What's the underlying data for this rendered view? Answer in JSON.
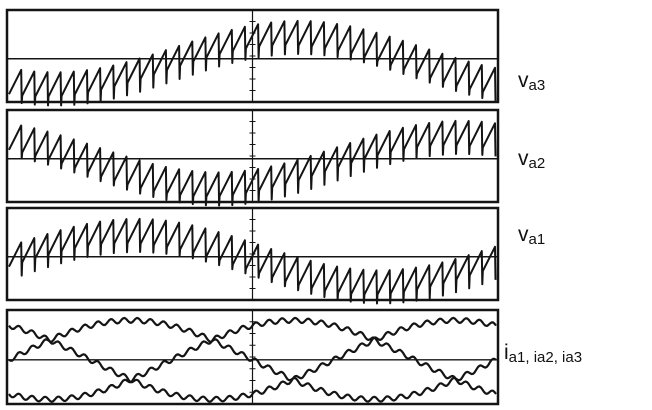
{
  "figure": {
    "panels": [
      {
        "label_main": "v",
        "label_sub": "a3"
      },
      {
        "label_main": "v",
        "label_sub": "a2"
      },
      {
        "label_main": "v",
        "label_sub": "a1"
      },
      {
        "label_main": "i",
        "label_sub": "a1, ia2, ia3"
      }
    ]
  },
  "chart_data": [
    {
      "type": "line",
      "title": "",
      "series": [
        {
          "name": "va3",
          "waveform": "sawtooth-ripple",
          "envelope_phase_deg": 240,
          "ripple_cycles": 37
        }
      ],
      "grid": true,
      "legend": "right"
    },
    {
      "type": "line",
      "title": "",
      "series": [
        {
          "name": "va2",
          "waveform": "sawtooth-ripple",
          "envelope_phase_deg": 120,
          "ripple_cycles": 37
        }
      ],
      "grid": true,
      "legend": "right"
    },
    {
      "type": "line",
      "title": "",
      "series": [
        {
          "name": "va1",
          "waveform": "sawtooth-ripple",
          "envelope_phase_deg": 0,
          "ripple_cycles": 37
        }
      ],
      "grid": true,
      "legend": "right"
    },
    {
      "type": "line",
      "title": "",
      "series": [
        {
          "name": "ia1",
          "phase_deg": 0,
          "ripple": true
        },
        {
          "name": "ia2",
          "phase_deg": 120,
          "ripple": true
        },
        {
          "name": "ia3",
          "phase_deg": 240,
          "ripple": true
        }
      ],
      "grid": true,
      "legend": "right"
    }
  ]
}
